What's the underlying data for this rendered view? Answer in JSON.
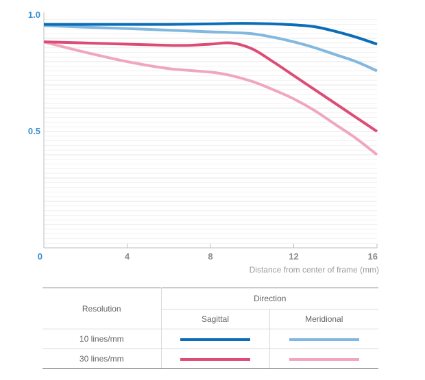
{
  "chart_data": {
    "type": "line",
    "title": "",
    "xlabel": "Distance from center of frame (mm)",
    "ylabel": "",
    "xlim": [
      0,
      16
    ],
    "ylim": [
      0,
      1.0
    ],
    "x_ticks": [
      "0",
      "4",
      "8",
      "12",
      "16"
    ],
    "y_ticks": [
      "0.5",
      "1.0"
    ],
    "grid": "horizontal",
    "series": [
      {
        "x": [
          0,
          2,
          4,
          6,
          8,
          9,
          10,
          11,
          12,
          13,
          14,
          15,
          16
        ],
        "y": [
          0.96,
          0.96,
          0.96,
          0.96,
          0.962,
          0.964,
          0.964,
          0.962,
          0.958,
          0.95,
          0.93,
          0.905,
          0.875
        ],
        "color": "#0b6db7"
      },
      {
        "x": [
          0,
          2,
          4,
          6,
          8,
          9,
          10,
          11,
          12,
          13,
          14,
          15,
          16
        ],
        "y": [
          0.955,
          0.948,
          0.942,
          0.935,
          0.928,
          0.925,
          0.92,
          0.905,
          0.885,
          0.86,
          0.83,
          0.8,
          0.76
        ],
        "color": "#82b8df"
      },
      {
        "x": [
          0,
          2,
          4,
          6,
          7,
          8,
          9,
          10,
          11,
          12,
          13,
          14,
          15,
          16
        ],
        "y": [
          0.885,
          0.88,
          0.875,
          0.87,
          0.87,
          0.875,
          0.88,
          0.855,
          0.8,
          0.74,
          0.68,
          0.62,
          0.56,
          0.5
        ],
        "color": "#dc4c76"
      },
      {
        "x": [
          0,
          2,
          4,
          6,
          8,
          9,
          10,
          11,
          12,
          13,
          14,
          15,
          16
        ],
        "y": [
          0.885,
          0.84,
          0.8,
          0.77,
          0.755,
          0.74,
          0.715,
          0.68,
          0.64,
          0.59,
          0.53,
          0.47,
          0.4
        ],
        "color": "#f0a7bd"
      }
    ]
  },
  "table": {
    "resolution_header": "Resolution",
    "direction_header": "Direction",
    "sagittal_header": "Sagittal",
    "meridional_header": "Meridional",
    "row1_label": "10 lines/mm",
    "row2_label": "30 lines/mm"
  }
}
